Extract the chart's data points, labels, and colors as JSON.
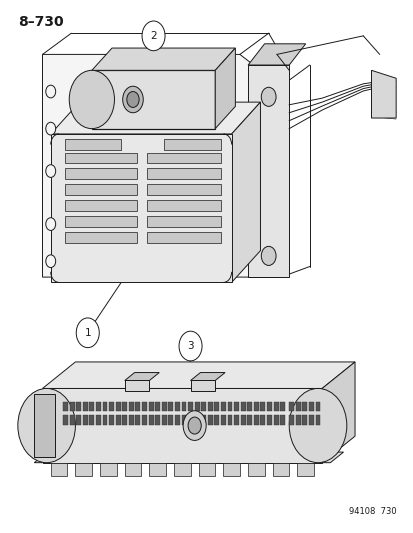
{
  "title_label": "8–730",
  "bottom_label": "94108  730",
  "background_color": "#ffffff",
  "line_color": "#1a1a1a",
  "figure_width": 4.14,
  "figure_height": 5.33,
  "dpi": 100
}
